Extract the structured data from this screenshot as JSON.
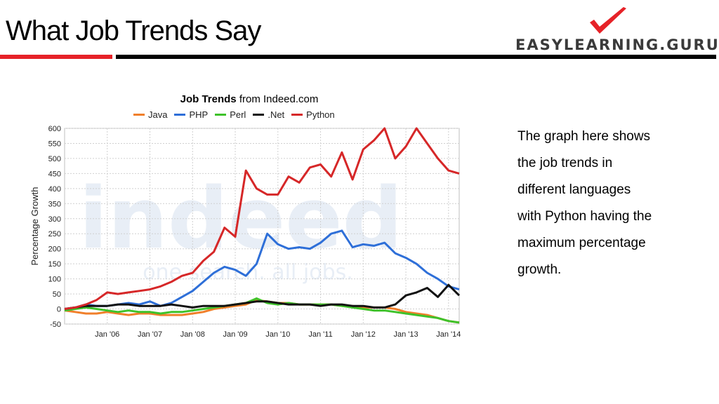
{
  "slide": {
    "title": "What Job Trends Say",
    "logo_text": "EASYLEARNING.GURU",
    "description_lines": [
      "The graph here shows",
      "the job trends in",
      "different languages",
      "with Python having the",
      " maximum percentage",
      " growth."
    ],
    "colors": {
      "rule_red": "#e62228",
      "rule_black": "#000000",
      "logo_check": "#e62228"
    }
  },
  "chart_data": {
    "type": "line",
    "title": "Job Trends",
    "subtitle": "from Indeed.com",
    "watermark": "indeed",
    "watermark_tagline": "one search. all jobs.",
    "ylabel": "Percentage Growth",
    "xlabel": "",
    "ylim": [
      -50,
      600
    ],
    "yticks": [
      -50,
      0,
      50,
      100,
      150,
      200,
      250,
      300,
      350,
      400,
      450,
      500,
      550,
      600
    ],
    "xlim": [
      2005.0,
      2014.25
    ],
    "xticks": [
      {
        "x": 2006.0,
        "label": "Jan '06"
      },
      {
        "x": 2007.0,
        "label": "Jan '07"
      },
      {
        "x": 2008.0,
        "label": "Jan '08"
      },
      {
        "x": 2009.0,
        "label": "Jan '09"
      },
      {
        "x": 2010.0,
        "label": "Jan '10"
      },
      {
        "x": 2011.0,
        "label": "Jan '11"
      },
      {
        "x": 2012.0,
        "label": "Jan '12"
      },
      {
        "x": 2013.0,
        "label": "Jan '13"
      },
      {
        "x": 2014.0,
        "label": "Jan '14"
      }
    ],
    "grid": true,
    "legend_position": "top",
    "series": [
      {
        "name": "Java",
        "color": "#f07f2a",
        "x": [
          2005.0,
          2005.25,
          2005.5,
          2005.75,
          2006.0,
          2006.25,
          2006.5,
          2006.75,
          2007.0,
          2007.25,
          2007.5,
          2007.75,
          2008.0,
          2008.25,
          2008.5,
          2008.75,
          2009.0,
          2009.25,
          2009.5,
          2009.75,
          2010.0,
          2010.25,
          2010.5,
          2010.75,
          2011.0,
          2011.25,
          2011.5,
          2011.75,
          2012.0,
          2012.25,
          2012.5,
          2012.75,
          2013.0,
          2013.25,
          2013.5,
          2013.75,
          2014.0,
          2014.25
        ],
        "y": [
          -5,
          -10,
          -15,
          -15,
          -10,
          -15,
          -20,
          -15,
          -15,
          -20,
          -20,
          -20,
          -15,
          -10,
          0,
          5,
          10,
          15,
          30,
          25,
          20,
          20,
          15,
          15,
          15,
          15,
          10,
          10,
          5,
          5,
          5,
          0,
          -10,
          -15,
          -20,
          -30,
          -40,
          -45
        ]
      },
      {
        "name": "PHP",
        "color": "#2e6fd8",
        "x": [
          2005.0,
          2005.25,
          2005.5,
          2005.75,
          2006.0,
          2006.25,
          2006.5,
          2006.75,
          2007.0,
          2007.25,
          2007.5,
          2007.75,
          2008.0,
          2008.25,
          2008.5,
          2008.75,
          2009.0,
          2009.25,
          2009.5,
          2009.75,
          2010.0,
          2010.25,
          2010.5,
          2010.75,
          2011.0,
          2011.25,
          2011.5,
          2011.75,
          2012.0,
          2012.25,
          2012.5,
          2012.75,
          2013.0,
          2013.25,
          2013.5,
          2013.75,
          2014.0,
          2014.25
        ],
        "y": [
          0,
          5,
          15,
          10,
          10,
          15,
          20,
          15,
          25,
          10,
          20,
          40,
          60,
          90,
          120,
          140,
          130,
          110,
          150,
          250,
          215,
          200,
          205,
          200,
          220,
          250,
          260,
          205,
          215,
          210,
          220,
          185,
          170,
          150,
          120,
          100,
          75,
          65
        ]
      },
      {
        "name": "Perl",
        "color": "#3ec22a",
        "x": [
          2005.0,
          2005.25,
          2005.5,
          2005.75,
          2006.0,
          2006.25,
          2006.5,
          2006.75,
          2007.0,
          2007.25,
          2007.5,
          2007.75,
          2008.0,
          2008.25,
          2008.5,
          2008.75,
          2009.0,
          2009.25,
          2009.5,
          2009.75,
          2010.0,
          2010.25,
          2010.5,
          2010.75,
          2011.0,
          2011.25,
          2011.5,
          2011.75,
          2012.0,
          2012.25,
          2012.5,
          2012.75,
          2013.0,
          2013.25,
          2013.5,
          2013.75,
          2014.0,
          2014.25
        ],
        "y": [
          -5,
          0,
          5,
          0,
          -5,
          -10,
          -5,
          -10,
          -10,
          -15,
          -10,
          -10,
          -5,
          0,
          5,
          10,
          15,
          20,
          35,
          20,
          15,
          20,
          15,
          15,
          15,
          15,
          10,
          5,
          0,
          -5,
          -5,
          -10,
          -15,
          -20,
          -25,
          -30,
          -40,
          -45
        ]
      },
      {
        "name": ".Net",
        "color": "#111111",
        "x": [
          2005.0,
          2005.25,
          2005.5,
          2005.75,
          2006.0,
          2006.25,
          2006.5,
          2006.75,
          2007.0,
          2007.25,
          2007.5,
          2007.75,
          2008.0,
          2008.25,
          2008.5,
          2008.75,
          2009.0,
          2009.25,
          2009.5,
          2009.75,
          2010.0,
          2010.25,
          2010.5,
          2010.75,
          2011.0,
          2011.25,
          2011.5,
          2011.75,
          2012.0,
          2012.25,
          2012.5,
          2012.75,
          2013.0,
          2013.25,
          2013.5,
          2013.75,
          2014.0,
          2014.25
        ],
        "y": [
          0,
          5,
          10,
          10,
          10,
          15,
          15,
          10,
          10,
          10,
          15,
          10,
          5,
          10,
          10,
          10,
          15,
          20,
          25,
          25,
          20,
          15,
          15,
          15,
          10,
          15,
          15,
          10,
          10,
          5,
          5,
          15,
          45,
          55,
          70,
          40,
          80,
          45
        ]
      },
      {
        "name": "Python",
        "color": "#d62728",
        "x": [
          2005.0,
          2005.25,
          2005.5,
          2005.75,
          2006.0,
          2006.25,
          2006.5,
          2006.75,
          2007.0,
          2007.25,
          2007.5,
          2007.75,
          2008.0,
          2008.25,
          2008.5,
          2008.75,
          2009.0,
          2009.25,
          2009.5,
          2009.75,
          2010.0,
          2010.25,
          2010.5,
          2010.75,
          2011.0,
          2011.25,
          2011.5,
          2011.75,
          2012.0,
          2012.25,
          2012.5,
          2012.75,
          2013.0,
          2013.25,
          2013.5,
          2013.75,
          2014.0,
          2014.25
        ],
        "y": [
          0,
          5,
          15,
          30,
          55,
          50,
          55,
          60,
          65,
          75,
          90,
          110,
          120,
          160,
          190,
          270,
          240,
          460,
          400,
          380,
          380,
          440,
          420,
          470,
          480,
          440,
          520,
          430,
          530,
          560,
          600,
          500,
          540,
          600,
          550,
          500,
          460,
          450
        ]
      }
    ]
  }
}
